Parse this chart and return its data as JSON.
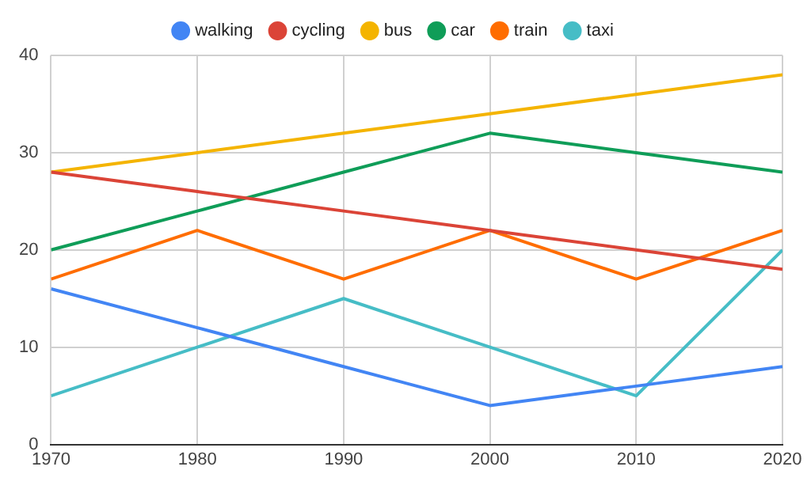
{
  "chart_data": {
    "type": "line",
    "x": [
      1970,
      1980,
      1990,
      2000,
      2010,
      2020
    ],
    "series": [
      {
        "name": "walking",
        "color": "#4285f4",
        "values": [
          16,
          12,
          8,
          4,
          6,
          8
        ]
      },
      {
        "name": "cycling",
        "color": "#db4437",
        "values": [
          28,
          26,
          24,
          22,
          20,
          18
        ]
      },
      {
        "name": "bus",
        "color": "#f4b400",
        "values": [
          28,
          30,
          32,
          34,
          36,
          38
        ]
      },
      {
        "name": "car",
        "color": "#0f9d58",
        "values": [
          20,
          24,
          28,
          32,
          30,
          28
        ]
      },
      {
        "name": "train",
        "color": "#ff6d01",
        "values": [
          17,
          22,
          17,
          22,
          17,
          22
        ]
      },
      {
        "name": "taxi",
        "color": "#46bdc6",
        "values": [
          5,
          10,
          15,
          10,
          5,
          20
        ]
      }
    ],
    "xlim": [
      1970,
      2020
    ],
    "xticks": [
      1970,
      1980,
      1990,
      2000,
      2010,
      2020
    ],
    "ylim": [
      0,
      40
    ],
    "yticks": [
      0,
      10,
      20,
      30,
      40
    ],
    "grid": true,
    "legend": "top",
    "marker": "none",
    "line_style": "solid"
  }
}
